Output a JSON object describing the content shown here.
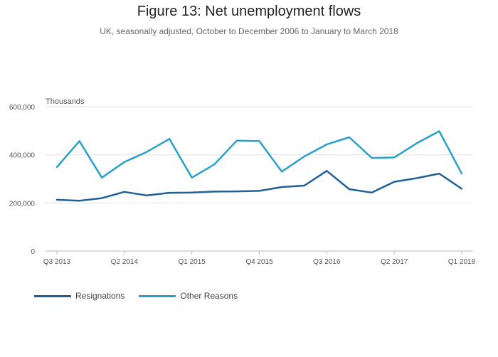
{
  "title": "Figure 13: Net unemployment flows",
  "subtitle": "UK, seasonally adjusted, October to December 2006 to January to March 2018",
  "chart_data": {
    "type": "line",
    "ylabel": "Thousands",
    "ylim": [
      0,
      600000
    ],
    "yticks": [
      0,
      200000,
      400000,
      600000
    ],
    "ytick_labels": [
      "0",
      "200,000",
      "400,000",
      "600,000"
    ],
    "x": [
      "Q3 2013",
      "Q4 2013",
      "Q1 2014",
      "Q2 2014",
      "Q3 2014",
      "Q4 2014",
      "Q1 2015",
      "Q2 2015",
      "Q3 2015",
      "Q4 2015",
      "Q1 2016",
      "Q2 2016",
      "Q3 2016",
      "Q4 2016",
      "Q1 2017",
      "Q2 2017",
      "Q3 2017",
      "Q4 2017",
      "Q1 2018"
    ],
    "xtick_labels": [
      "Q3 2013",
      "Q2 2014",
      "Q1 2015",
      "Q4 2015",
      "Q3 2016",
      "Q2 2017",
      "Q1 2018"
    ],
    "grid": true,
    "legend_position": "bottom-left",
    "series": [
      {
        "name": "Resignations",
        "color": "#206095",
        "values": [
          213000,
          209000,
          220000,
          246000,
          231000,
          242000,
          243000,
          247000,
          248000,
          250000,
          266000,
          272000,
          333000,
          257000,
          243000,
          288000,
          303000,
          322000,
          259000
        ]
      },
      {
        "name": "Other Reasons",
        "color": "#27a0cc",
        "values": [
          349000,
          457000,
          305000,
          370000,
          412000,
          466000,
          305000,
          360000,
          459000,
          457000,
          330000,
          393000,
          443000,
          473000,
          387000,
          389000,
          448000,
          498000,
          322000
        ]
      }
    ]
  }
}
